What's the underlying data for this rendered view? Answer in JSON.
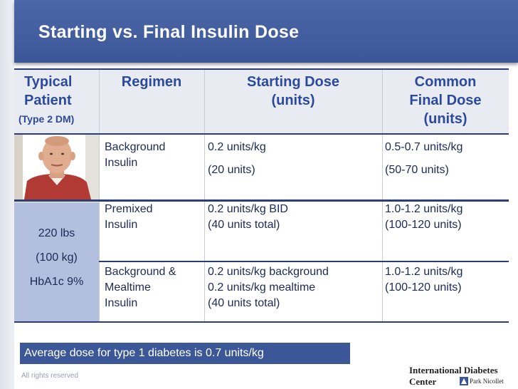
{
  "slide": {
    "title": "Starting vs. Final Insulin Dose"
  },
  "table": {
    "headers": {
      "patient_line1": "Typical",
      "patient_line2": "Patient",
      "patient_sub": "(Type 2 DM)",
      "regimen": "Regimen",
      "starting_line1": "Starting Dose",
      "starting_line2": "(units)",
      "final_line1": "Common",
      "final_line2": "Final Dose",
      "final_line3": "(units)"
    },
    "patient": {
      "weight_lbs": "220 lbs",
      "weight_kg": "(100 kg)",
      "hba1c": "HbA1c 9%"
    },
    "rows": [
      {
        "regimen": [
          "Background",
          "Insulin"
        ],
        "starting": [
          "0.2 units/kg",
          "(20 units)"
        ],
        "final": [
          "0.5-0.7 units/kg",
          "(50-70 units)"
        ]
      },
      {
        "regimen": [
          "Premixed",
          "Insulin"
        ],
        "starting": [
          "0.2 units/kg BID",
          "(40 units total)"
        ],
        "final": [
          "1.0-1.2 units/kg",
          "(100-120 units)"
        ]
      },
      {
        "regimen": [
          "Background &",
          "Mealtime",
          "Insulin"
        ],
        "starting": [
          "0.2 units/kg background",
          "0.2 units/kg mealtime",
          "(40 units total)"
        ],
        "final": [
          "1.0-1.2 units/kg",
          "(100-120 units)"
        ]
      }
    ]
  },
  "footer": {
    "note": "Average dose for type 1 diabetes is 0.7 units/kg",
    "rights": "All rights reserved",
    "logo_primary": "International Diabetes Center",
    "logo_secondary": "Park Nicollet"
  },
  "colors": {
    "header_blue": "#3c5798",
    "heading_text": "#2c4a9c",
    "patient_box": "#b3bfdf"
  }
}
